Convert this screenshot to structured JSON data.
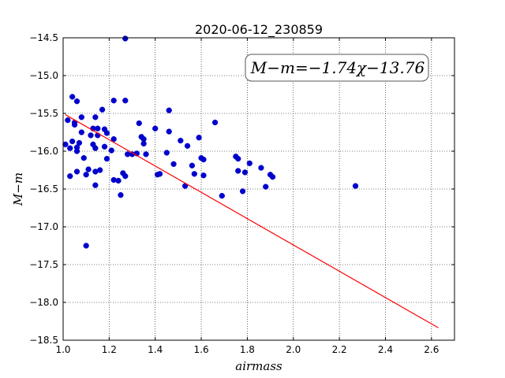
{
  "chart_data": {
    "type": "scatter",
    "title": "2020-06-12_230859",
    "xlabel": "airmass",
    "ylabel": "M−m",
    "xlim": [
      1.0,
      2.7
    ],
    "ylim": [
      -18.5,
      -14.5
    ],
    "y_inverted": true,
    "grid": true,
    "x_ticks": [
      "1.0",
      "1.2",
      "1.4",
      "1.6",
      "1.8",
      "2.0",
      "2.2",
      "2.4",
      "2.6"
    ],
    "y_ticks": [
      "−14.5",
      "−15.0",
      "−15.5",
      "−16.0",
      "−16.5",
      "−17.0",
      "−17.5",
      "−18.0",
      "−18.5"
    ],
    "annotation": "M−m=−1.74χ−13.76",
    "fit": {
      "slope": -1.74,
      "intercept": -13.76,
      "x_range": [
        1.01,
        2.63
      ],
      "color": "#ff0000"
    },
    "point_color": "#0000cc",
    "points": [
      [
        1.01,
        -15.91
      ],
      [
        1.02,
        -15.59
      ],
      [
        1.03,
        -15.96
      ],
      [
        1.03,
        -16.33
      ],
      [
        1.04,
        -15.28
      ],
      [
        1.04,
        -15.87
      ],
      [
        1.05,
        -15.62
      ],
      [
        1.05,
        -15.65
      ],
      [
        1.06,
        -15.34
      ],
      [
        1.06,
        -15.95
      ],
      [
        1.06,
        -16.0
      ],
      [
        1.06,
        -16.27
      ],
      [
        1.07,
        -15.89
      ],
      [
        1.08,
        -15.55
      ],
      [
        1.08,
        -15.75
      ],
      [
        1.09,
        -16.09
      ],
      [
        1.1,
        -16.31
      ],
      [
        1.1,
        -17.25
      ],
      [
        1.11,
        -16.24
      ],
      [
        1.12,
        -15.79
      ],
      [
        1.13,
        -15.7
      ],
      [
        1.13,
        -15.91
      ],
      [
        1.14,
        -15.96
      ],
      [
        1.14,
        -16.27
      ],
      [
        1.14,
        -15.55
      ],
      [
        1.14,
        -16.45
      ],
      [
        1.15,
        -15.7
      ],
      [
        1.15,
        -15.79
      ],
      [
        1.16,
        -16.25
      ],
      [
        1.17,
        -15.45
      ],
      [
        1.18,
        -15.94
      ],
      [
        1.18,
        -15.71
      ],
      [
        1.19,
        -15.76
      ],
      [
        1.19,
        -16.1
      ],
      [
        1.21,
        -15.99
      ],
      [
        1.22,
        -15.84
      ],
      [
        1.22,
        -15.33
      ],
      [
        1.22,
        -16.38
      ],
      [
        1.24,
        -16.39
      ],
      [
        1.25,
        -16.58
      ],
      [
        1.26,
        -16.29
      ],
      [
        1.27,
        -16.33
      ],
      [
        1.27,
        -15.33
      ],
      [
        1.27,
        -14.51
      ],
      [
        1.28,
        -16.04
      ],
      [
        1.3,
        -16.04
      ],
      [
        1.32,
        -16.03
      ],
      [
        1.33,
        -15.63
      ],
      [
        1.34,
        -15.81
      ],
      [
        1.35,
        -15.84
      ],
      [
        1.35,
        -15.9
      ],
      [
        1.36,
        -16.04
      ],
      [
        1.4,
        -15.7
      ],
      [
        1.41,
        -16.31
      ],
      [
        1.42,
        -16.3
      ],
      [
        1.45,
        -16.02
      ],
      [
        1.46,
        -15.74
      ],
      [
        1.46,
        -15.46
      ],
      [
        1.48,
        -16.17
      ],
      [
        1.51,
        -15.86
      ],
      [
        1.53,
        -16.46
      ],
      [
        1.54,
        -15.93
      ],
      [
        1.56,
        -16.19
      ],
      [
        1.57,
        -16.3
      ],
      [
        1.59,
        -15.82
      ],
      [
        1.6,
        -16.09
      ],
      [
        1.61,
        -16.11
      ],
      [
        1.61,
        -16.32
      ],
      [
        1.66,
        -15.62
      ],
      [
        1.69,
        -16.59
      ],
      [
        1.75,
        -16.07
      ],
      [
        1.76,
        -16.1
      ],
      [
        1.76,
        -16.26
      ],
      [
        1.78,
        -16.53
      ],
      [
        1.79,
        -16.28
      ],
      [
        1.81,
        -16.16
      ],
      [
        1.86,
        -16.22
      ],
      [
        1.88,
        -16.47
      ],
      [
        1.9,
        -16.31
      ],
      [
        1.91,
        -16.34
      ],
      [
        2.27,
        -16.46
      ]
    ]
  }
}
